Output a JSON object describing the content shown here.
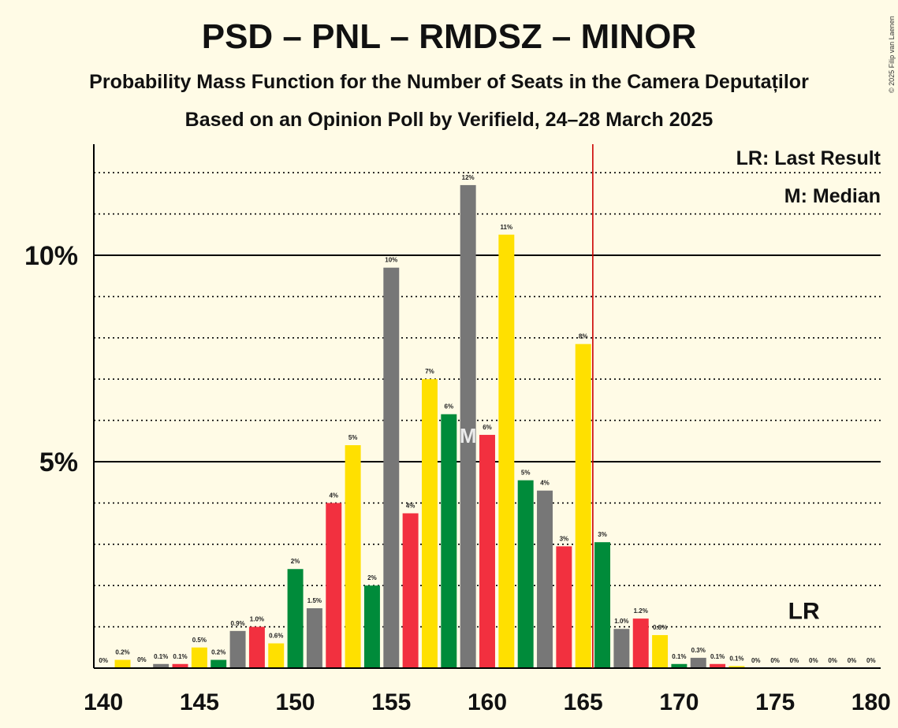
{
  "title": "PSD – PNL – RMDSZ – MINOR",
  "subtitle": "Probability Mass Function for the Number of Seats in the Camera Deputaților",
  "subtitle2": "Based on an Opinion Poll by Verifield, 24–28 March 2025",
  "copyright": "© 2025 Filip van Laenen",
  "legend": {
    "lr": "LR: Last Result",
    "m": "M: Median"
  },
  "markers": {
    "lr_label": "LR",
    "median_label": "M"
  },
  "colors": {
    "gray": "#777777",
    "yellow": "#FFE000",
    "green": "#008B3A",
    "red": "#F2303F",
    "lr_line": "#CC0000",
    "background": "#FFFBE6"
  },
  "chart_data": {
    "type": "bar",
    "x": [
      140,
      141,
      142,
      143,
      144,
      145,
      146,
      147,
      148,
      149,
      150,
      151,
      152,
      153,
      154,
      155,
      156,
      157,
      158,
      159,
      160,
      161,
      162,
      163,
      164,
      165,
      166,
      167,
      168,
      169,
      170,
      171,
      172,
      173,
      174,
      175,
      176,
      177,
      178,
      179,
      180
    ],
    "values": [
      0,
      0.2,
      0.02,
      0.1,
      0.1,
      0.5,
      0.2,
      0.9,
      1.0,
      0.6,
      2.4,
      1.45,
      4.0,
      5.4,
      2.0,
      9.7,
      3.75,
      7.0,
      6.15,
      11.7,
      5.65,
      10.5,
      4.55,
      4.3,
      2.95,
      7.85,
      3.05,
      0.95,
      1.2,
      0.8,
      0.1,
      0.25,
      0.1,
      0.05,
      0,
      0,
      0,
      0,
      0,
      0,
      0
    ],
    "labels": [
      "0%",
      "0.2%",
      "0%",
      "0.1%",
      "0.1%",
      "0.5%",
      "0.2%",
      "0.9%",
      "1.0%",
      "0.6%",
      "2%",
      "1.5%",
      "4%",
      "5%",
      "2%",
      "10%",
      "4%",
      "7%",
      "6%",
      "12%",
      "6%",
      "11%",
      "5%",
      "4%",
      "3%",
      "8%",
      "3%",
      "1.0%",
      "1.2%",
      "0.8%",
      "0.1%",
      "0.3%",
      "0.1%",
      "0.1%",
      "0%",
      "0%",
      "0%",
      "0%",
      "0%",
      "0%",
      "0%"
    ],
    "colors": [
      "gray",
      "yellow",
      "green",
      "gray",
      "red",
      "yellow",
      "green",
      "gray",
      "red",
      "yellow",
      "green",
      "gray",
      "red",
      "yellow",
      "green",
      "gray",
      "red",
      "yellow",
      "green",
      "gray",
      "red",
      "yellow",
      "green",
      "gray",
      "red",
      "yellow",
      "green",
      "gray",
      "red",
      "yellow",
      "green",
      "gray",
      "red",
      "yellow",
      "green",
      "gray",
      "red",
      "yellow",
      "green",
      "gray",
      "red"
    ],
    "x_ticks": [
      140,
      145,
      150,
      155,
      160,
      165,
      170,
      175,
      180
    ],
    "x_tick_labels": [
      "140",
      "145",
      "150",
      "155",
      "160",
      "165",
      "170",
      "175",
      "180"
    ],
    "y_ticks": [
      5,
      10
    ],
    "y_tick_labels": [
      "5%",
      "10%"
    ],
    "ylim": [
      0,
      12.7
    ],
    "xlim": [
      139.5,
      180.5
    ],
    "last_result": 166,
    "median": 159,
    "grid": "dotted at every 1%, solid at 5% and 10%",
    "legend_position": "top-right"
  }
}
